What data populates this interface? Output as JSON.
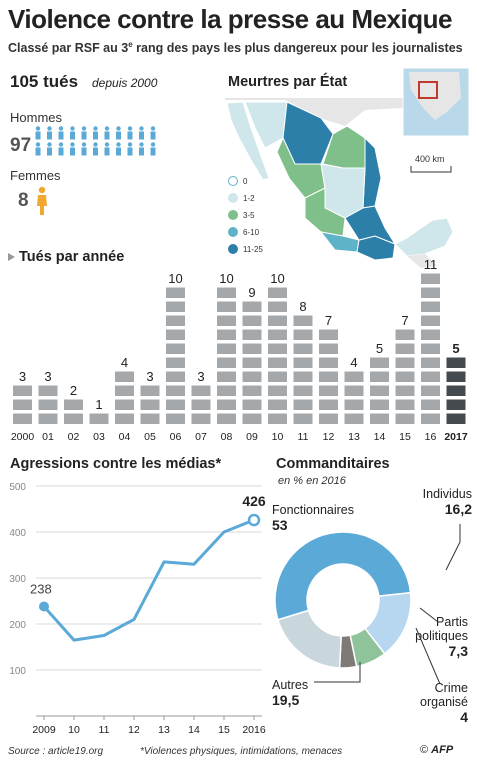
{
  "header": {
    "title": "Violence contre la presse au Mexique",
    "subtitle_pre": "Classé par RSF au 3",
    "subtitle_sup": "e",
    "subtitle_post": " rang des pays les plus dangereux pour les journalistes"
  },
  "killed": {
    "total": "105 tués",
    "since": "depuis 2000",
    "men_label": "Hommes",
    "men_value": "97",
    "women_label": "Femmes",
    "women_value": "8",
    "men_color": "#5aa9d6",
    "women_color": "#f0a830"
  },
  "map": {
    "title": "Meurtres par État",
    "scale_label": "400 km",
    "legend": [
      {
        "label": "0",
        "color": "#ffffff"
      },
      {
        "label": "1-2",
        "color": "#cfe7ea"
      },
      {
        "label": "3-5",
        "color": "#7fbf8a"
      },
      {
        "label": "6-10",
        "color": "#5fb3c8"
      },
      {
        "label": "11-25",
        "color": "#2b7fa8"
      }
    ]
  },
  "chart_data": [
    {
      "type": "bar",
      "title": "Tués par année",
      "categories": [
        "2000",
        "01",
        "02",
        "03",
        "04",
        "05",
        "06",
        "07",
        "08",
        "09",
        "10",
        "11",
        "12",
        "13",
        "14",
        "15",
        "16",
        "2017"
      ],
      "values": [
        3,
        3,
        2,
        1,
        4,
        3,
        10,
        3,
        10,
        9,
        10,
        8,
        7,
        4,
        5,
        7,
        11,
        5
      ],
      "colors": {
        "default": "#a4a8ab",
        "highlight": "#444a4e"
      }
    },
    {
      "type": "line",
      "title": "Agressions contre les médias*",
      "x": [
        "2009",
        "10",
        "11",
        "12",
        "13",
        "14",
        "15",
        "2016"
      ],
      "y": [
        238,
        165,
        175,
        210,
        335,
        330,
        400,
        426
      ],
      "ylim": [
        0,
        500
      ],
      "yticks": [
        100,
        200,
        300,
        400,
        500
      ],
      "labels": {
        "first": "238",
        "last": "426"
      },
      "color": "#5aa9d6"
    },
    {
      "type": "pie",
      "title": "Commanditaires",
      "subtitle": "en % en 2016",
      "slices": [
        {
          "label": "Fonctionnaires",
          "value": 53,
          "display": "53",
          "color": "#5aa9d6"
        },
        {
          "label": "Individus",
          "value": 16.2,
          "display": "16,2",
          "color": "#b7d7f0"
        },
        {
          "label": "Partis politiques",
          "value": 7.3,
          "display": "7,3",
          "color": "#8fc49a"
        },
        {
          "label": "Crime organisé",
          "value": 4,
          "display": "4",
          "color": "#7d7a78"
        },
        {
          "label": "Autres",
          "value": 19.5,
          "display": "19,5",
          "color": "#c9d7dd"
        }
      ]
    }
  ],
  "footer": {
    "source": "Source : article19.org",
    "note": "*Violences physiques, intimidations, menaces",
    "credit": "© ",
    "logo": "AFP"
  }
}
